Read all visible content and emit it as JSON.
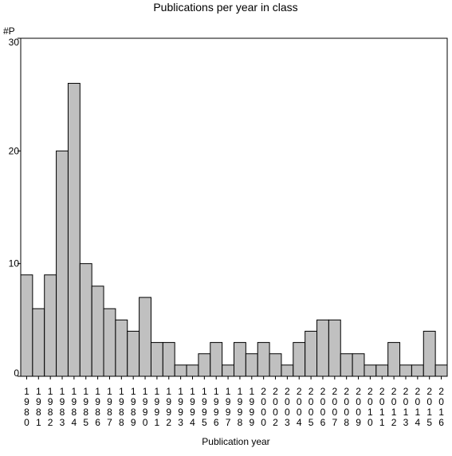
{
  "chart_data": {
    "type": "bar",
    "title": "Publications per year in class",
    "xlabel": "Publication year",
    "ylabel": "#P",
    "ylim": [
      0,
      30
    ],
    "yticks": [
      0,
      10,
      20,
      30
    ],
    "grid": false,
    "bar_color": "#c0c0c0",
    "bar_edge_color": "#000000",
    "categories": [
      "1980",
      "1981",
      "1982",
      "1983",
      "1984",
      "1985",
      "1986",
      "1987",
      "1988",
      "1989",
      "1990",
      "1991",
      "1992",
      "1993",
      "1994",
      "1995",
      "1996",
      "1997",
      "1998",
      "1999",
      "2000",
      "2002",
      "2003",
      "2004",
      "2005",
      "2006",
      "2007",
      "2008",
      "2009",
      "2010",
      "2011",
      "2012",
      "2013",
      "2014",
      "2015",
      "2016"
    ],
    "values": [
      9,
      6,
      9,
      20,
      26,
      10,
      8,
      6,
      5,
      4,
      7,
      3,
      3,
      1,
      1,
      2,
      3,
      1,
      3,
      2,
      3,
      2,
      1,
      3,
      4,
      5,
      5,
      2,
      2,
      1,
      1,
      3,
      1,
      1,
      4,
      1
    ]
  }
}
